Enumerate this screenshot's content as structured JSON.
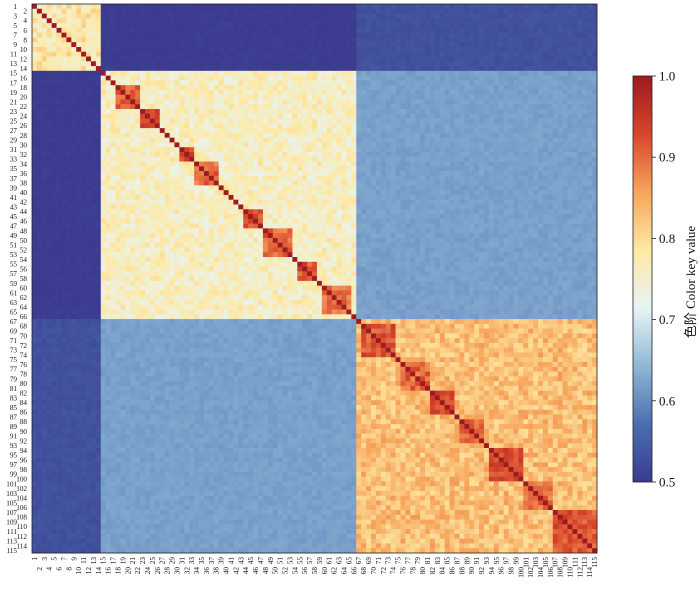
{
  "chart_data": {
    "type": "heatmap",
    "title": "",
    "xlabel": "",
    "ylabel": "",
    "row_labels": [
      "1",
      "2",
      "3",
      "4",
      "5",
      "6",
      "7",
      "8",
      "9",
      "10",
      "11",
      "12",
      "13",
      "14",
      "15",
      "16",
      "17",
      "18",
      "19",
      "20",
      "21",
      "22",
      "23",
      "24",
      "25",
      "26",
      "27",
      "28",
      "29",
      "30",
      "31",
      "32",
      "33",
      "34",
      "35",
      "36",
      "37",
      "38",
      "39",
      "40",
      "41",
      "42",
      "43",
      "44",
      "45",
      "46",
      "47",
      "48",
      "49",
      "50",
      "51",
      "52",
      "53",
      "54",
      "55",
      "56",
      "57",
      "58",
      "59",
      "60",
      "61",
      "62",
      "63",
      "64",
      "65",
      "66",
      "67",
      "68",
      "69",
      "70",
      "71",
      "72",
      "73",
      "74",
      "75",
      "76",
      "77",
      "78",
      "79",
      "80",
      "81",
      "82",
      "83",
      "84",
      "85",
      "86",
      "87",
      "88",
      "89",
      "90",
      "91",
      "92",
      "93",
      "94",
      "95",
      "96",
      "97",
      "98",
      "99",
      "100",
      "101",
      "102",
      "103",
      "104",
      "105",
      "106",
      "107",
      "108",
      "109",
      "110",
      "111",
      "112",
      "113",
      "114",
      "115"
    ],
    "col_labels": [
      "1",
      "2",
      "3",
      "4",
      "5",
      "6",
      "7",
      "8",
      "9",
      "10",
      "11",
      "12",
      "13",
      "14",
      "15",
      "16",
      "17",
      "18",
      "19",
      "20",
      "21",
      "22",
      "23",
      "24",
      "25",
      "26",
      "27",
      "28",
      "29",
      "30",
      "31",
      "32",
      "33",
      "34",
      "35",
      "36",
      "37",
      "38",
      "39",
      "40",
      "41",
      "42",
      "43",
      "44",
      "45",
      "46",
      "47",
      "48",
      "49",
      "50",
      "51",
      "52",
      "53",
      "54",
      "55",
      "56",
      "57",
      "58",
      "59",
      "60",
      "61",
      "62",
      "63",
      "64",
      "65",
      "66",
      "67",
      "68",
      "69",
      "70",
      "71",
      "72",
      "73",
      "74",
      "75",
      "76",
      "77",
      "78",
      "79",
      "80",
      "81",
      "82",
      "83",
      "84",
      "85",
      "86",
      "87",
      "88",
      "89",
      "90",
      "91",
      "92",
      "93",
      "94",
      "95",
      "96",
      "97",
      "98",
      "99",
      "100",
      "101",
      "102",
      "103",
      "104",
      "105",
      "106",
      "107",
      "108",
      "109",
      "110",
      "111",
      "112",
      "113",
      "114",
      "115"
    ],
    "clusters": [
      {
        "rows_from": 1,
        "rows_to": 14,
        "within_value": 0.78
      },
      {
        "rows_from": 15,
        "rows_to": 66,
        "within_value": 0.76
      },
      {
        "rows_from": 67,
        "rows_to": 115,
        "within_value": 0.83
      }
    ],
    "between_cluster_values": {
      "c1_c2": 0.5,
      "c1_c3": 0.53,
      "c2_c3": 0.62
    },
    "subblocks": [
      {
        "from": 18,
        "to": 22,
        "value": 0.91
      },
      {
        "from": 23,
        "to": 26,
        "value": 0.92
      },
      {
        "from": 31,
        "to": 33,
        "value": 0.93
      },
      {
        "from": 34,
        "to": 38,
        "value": 0.9
      },
      {
        "from": 44,
        "to": 47,
        "value": 0.93
      },
      {
        "from": 48,
        "to": 53,
        "value": 0.9
      },
      {
        "from": 55,
        "to": 58,
        "value": 0.92
      },
      {
        "from": 60,
        "to": 65,
        "value": 0.9
      },
      {
        "from": 68,
        "to": 74,
        "value": 0.92
      },
      {
        "from": 76,
        "to": 81,
        "value": 0.9
      },
      {
        "from": 82,
        "to": 86,
        "value": 0.92
      },
      {
        "from": 88,
        "to": 92,
        "value": 0.91
      },
      {
        "from": 94,
        "to": 100,
        "value": 0.93
      },
      {
        "from": 101,
        "to": 106,
        "value": 0.9
      },
      {
        "from": 107,
        "to": 115,
        "value": 0.92
      }
    ],
    "diagonal_value": 1.0,
    "colorbar": {
      "min": 0.5,
      "max": 1.0,
      "ticks": [
        "0.5",
        "0.6",
        "0.7",
        "0.8",
        "0.9",
        "1.0"
      ],
      "label": "色阶  Color key value",
      "colors": [
        "#3b3b8f",
        "#4a6fb0",
        "#8fb8d6",
        "#e8f4f4",
        "#fde9a4",
        "#f7a55c",
        "#d8452c",
        "#9c1b1e"
      ]
    },
    "grid": false,
    "legend": "colorbar-right"
  }
}
